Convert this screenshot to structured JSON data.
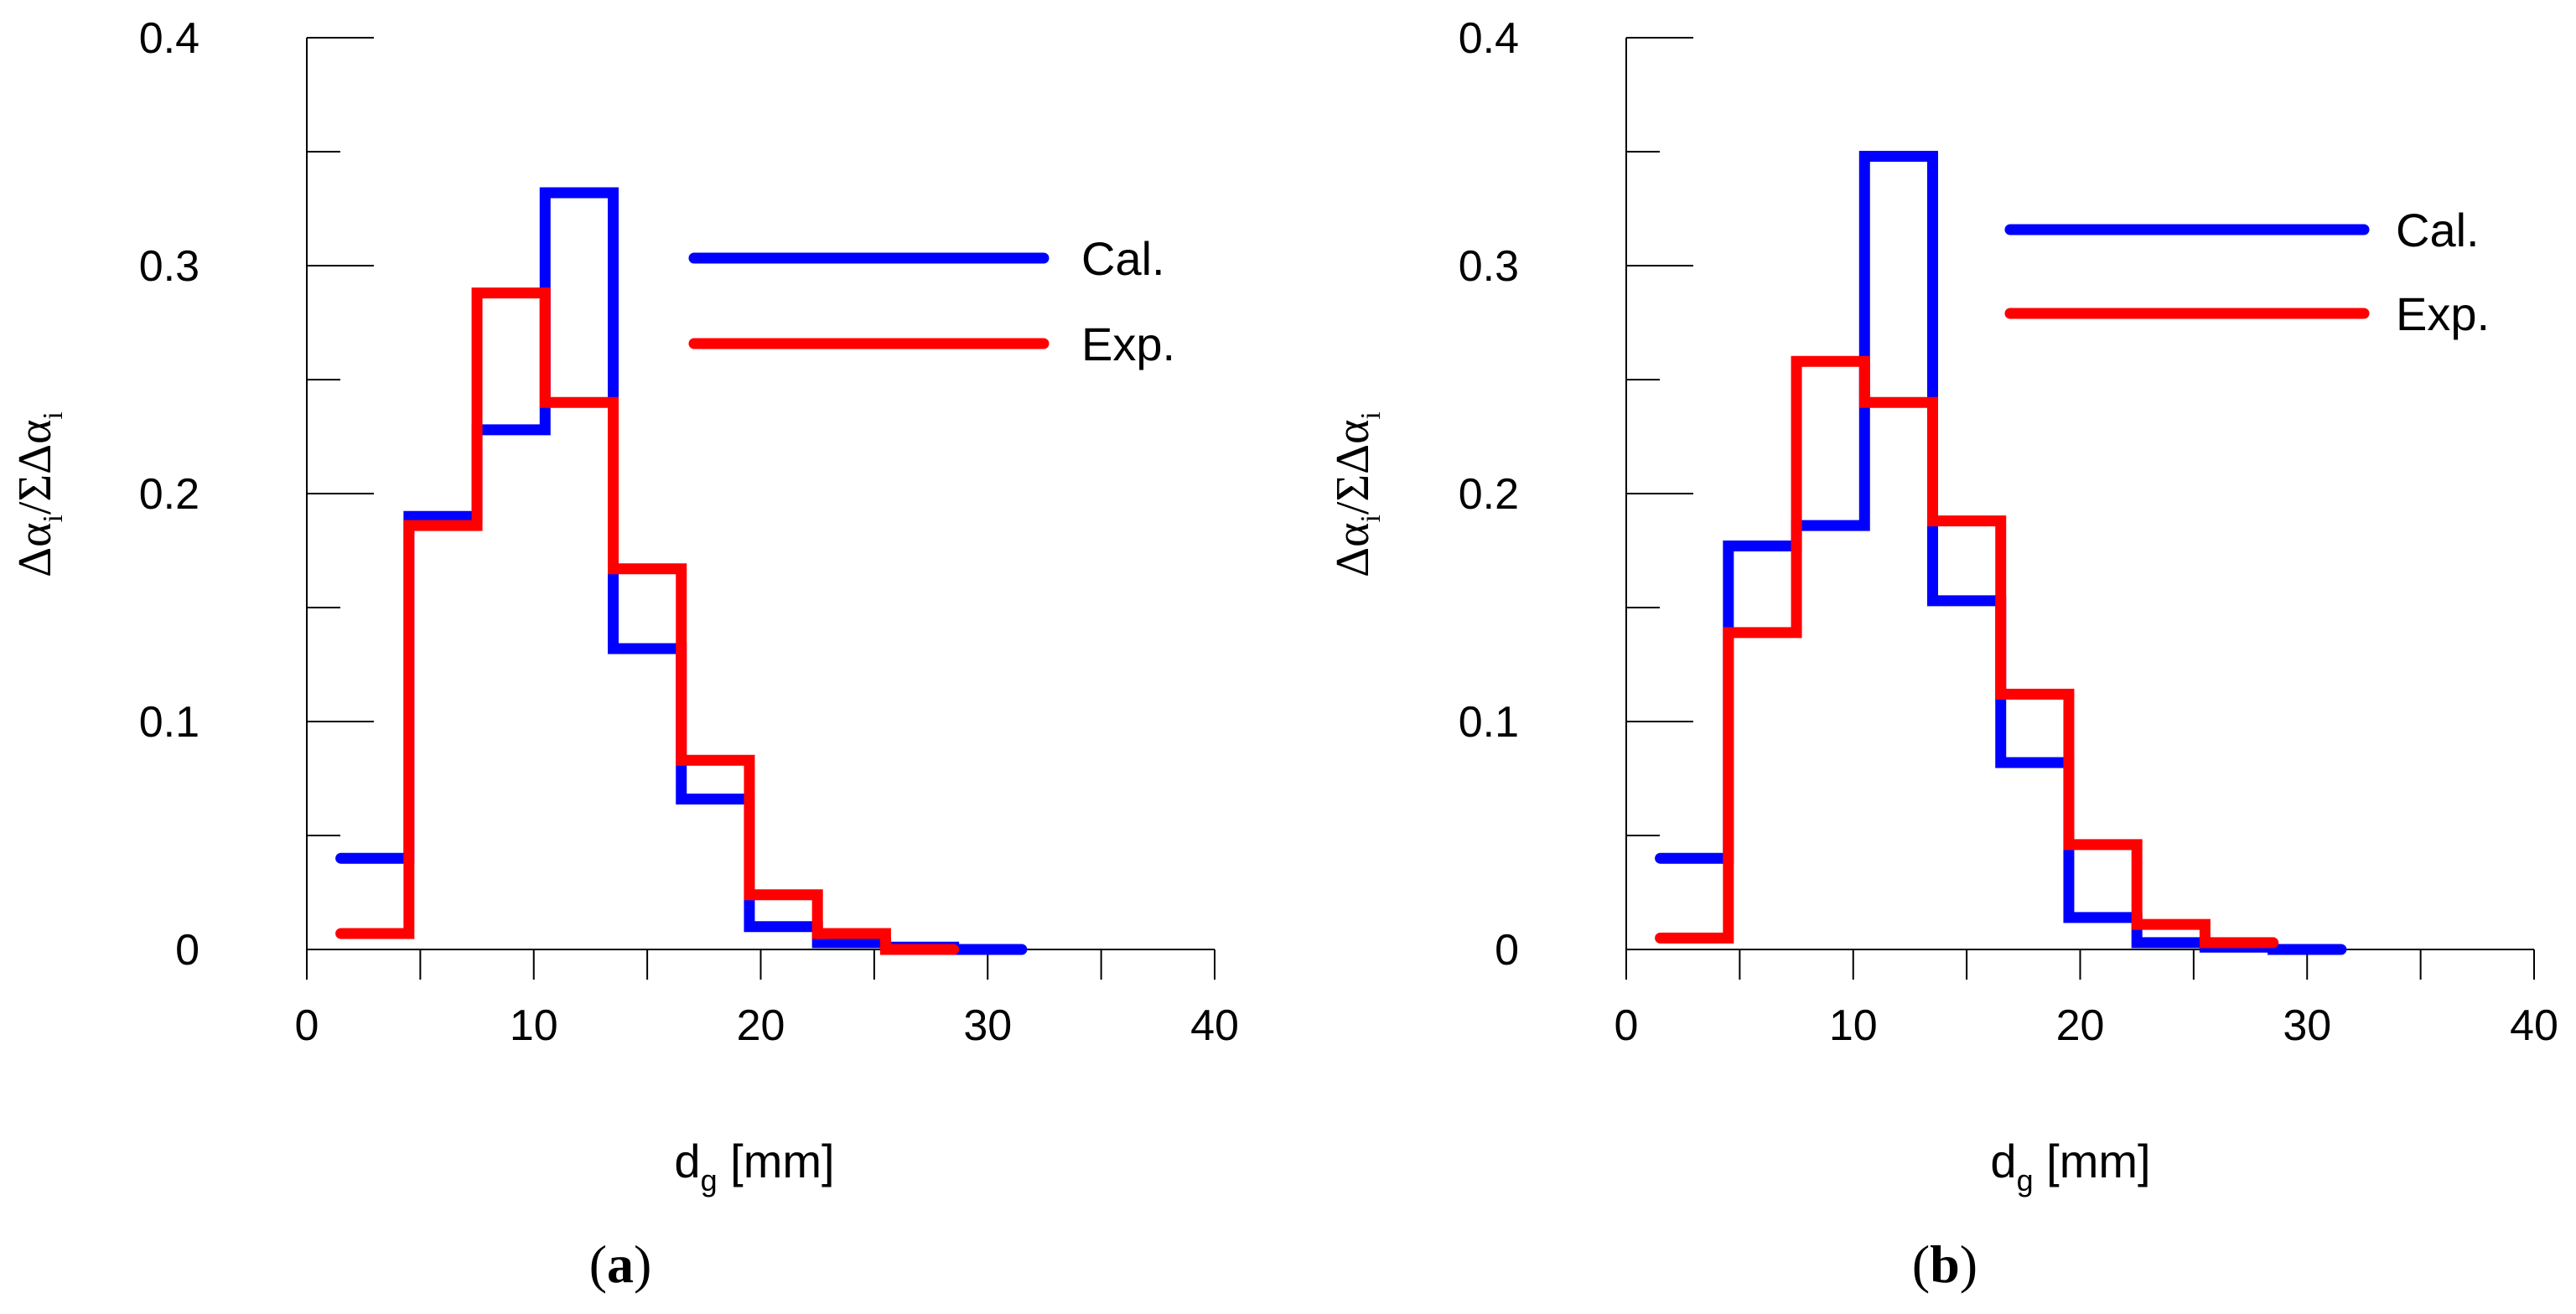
{
  "chart_data": [
    {
      "panel": "(a)",
      "panel_letter": "a",
      "type": "line",
      "step_style": "histogram",
      "xlabel_main": "d",
      "xlabel_sub": "g",
      "xlabel_unit": " [mm]",
      "ylabel_parts": [
        "Δα",
        "i",
        "/ΣΔα",
        "i"
      ],
      "xlim": [
        0,
        40
      ],
      "ylim": [
        0,
        0.4
      ],
      "x_major_ticks": [
        0,
        10,
        20,
        30,
        40
      ],
      "x_tick_labels": [
        "0",
        "10",
        "20",
        "30",
        "40"
      ],
      "x_minor_step": 5,
      "y_major_ticks": [
        0,
        0.1,
        0.2,
        0.3,
        0.4
      ],
      "y_tick_labels": [
        "0",
        "0.1",
        "0.2",
        "0.3",
        "0.4"
      ],
      "y_minor_step": 0.05,
      "legend_position": "top-right",
      "series": [
        {
          "name": "Cal.",
          "color": "#0000ff",
          "edges": [
            1.5,
            4.5,
            7.5,
            10.5,
            13.5,
            16.5,
            19.5,
            22.5,
            25.5,
            28.5,
            31.5
          ],
          "values": [
            0.04,
            0.19,
            0.228,
            0.332,
            0.132,
            0.066,
            0.01,
            0.003,
            0.001,
            0.0
          ]
        },
        {
          "name": "Exp.",
          "color": "#ff0000",
          "edges": [
            1.5,
            4.5,
            7.5,
            10.5,
            13.5,
            16.5,
            19.5,
            22.5,
            25.5,
            28.5
          ],
          "values": [
            0.007,
            0.186,
            0.288,
            0.24,
            0.167,
            0.083,
            0.024,
            0.007,
            0.0
          ]
        }
      ]
    },
    {
      "panel": "(b)",
      "panel_letter": "b",
      "type": "line",
      "step_style": "histogram",
      "xlabel_main": "d",
      "xlabel_sub": "g",
      "xlabel_unit": " [mm]",
      "ylabel_parts": [
        "Δα",
        "i",
        "/ΣΔα",
        "i"
      ],
      "xlim": [
        0,
        40
      ],
      "ylim": [
        0,
        0.4
      ],
      "x_major_ticks": [
        0,
        10,
        20,
        30,
        40
      ],
      "x_tick_labels": [
        "0",
        "10",
        "20",
        "30",
        "40"
      ],
      "x_minor_step": 5,
      "y_major_ticks": [
        0,
        0.1,
        0.2,
        0.3,
        0.4
      ],
      "y_tick_labels": [
        "0",
        "0.1",
        "0.2",
        "0.3",
        "0.4"
      ],
      "y_minor_step": 0.05,
      "legend_position": "top-right",
      "series": [
        {
          "name": "Cal.",
          "color": "#0000ff",
          "edges": [
            1.5,
            4.5,
            7.5,
            10.5,
            13.5,
            16.5,
            19.5,
            22.5,
            25.5,
            28.5,
            31.5
          ],
          "values": [
            0.04,
            0.177,
            0.186,
            0.348,
            0.153,
            0.082,
            0.014,
            0.003,
            0.001,
            0.0
          ]
        },
        {
          "name": "Exp.",
          "color": "#ff0000",
          "edges": [
            1.5,
            4.5,
            7.5,
            10.5,
            13.5,
            16.5,
            19.5,
            22.5,
            25.5,
            28.5
          ],
          "values": [
            0.005,
            0.139,
            0.258,
            0.24,
            0.188,
            0.112,
            0.046,
            0.011,
            0.003
          ]
        }
      ]
    }
  ]
}
